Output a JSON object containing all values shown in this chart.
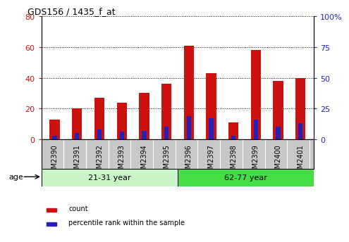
{
  "title": "GDS156 / 1435_f_at",
  "categories": [
    "GSM2390",
    "GSM2391",
    "GSM2392",
    "GSM2393",
    "GSM2394",
    "GSM2395",
    "GSM2396",
    "GSM2397",
    "GSM2398",
    "GSM2399",
    "GSM2400",
    "GSM2401"
  ],
  "count_values": [
    13,
    20,
    27,
    24,
    30,
    36,
    61,
    43,
    11,
    58,
    38,
    40
  ],
  "percentile_values": [
    3,
    5,
    8,
    6,
    7,
    10,
    19,
    17,
    3,
    16,
    10,
    13
  ],
  "bar_width": 0.45,
  "blue_bar_width": 0.2,
  "red_color": "#cc1111",
  "blue_color": "#2222bb",
  "ylim_left": [
    0,
    80
  ],
  "ylim_right": [
    0,
    100
  ],
  "yticks_left": [
    0,
    20,
    40,
    60,
    80
  ],
  "yticks_right": [
    0,
    25,
    50,
    75,
    100
  ],
  "ytick_labels_right": [
    "0",
    "25",
    "50",
    "75",
    "100%"
  ],
  "group1_color": "#c8f5c8",
  "group2_color": "#44dd44",
  "group1_label": "21-31 year",
  "group2_label": "62-77 year",
  "age_label": "age",
  "legend_count": "count",
  "legend_percentile": "percentile rank within the sample",
  "red_color_legend": "#cc1111",
  "blue_color_legend": "#2222bb",
  "xtick_bg": "#c8c8c8",
  "grid_color": "#000000",
  "title_fontsize": 9,
  "label_fontsize": 7,
  "legend_fontsize": 7,
  "band_fontsize": 8
}
